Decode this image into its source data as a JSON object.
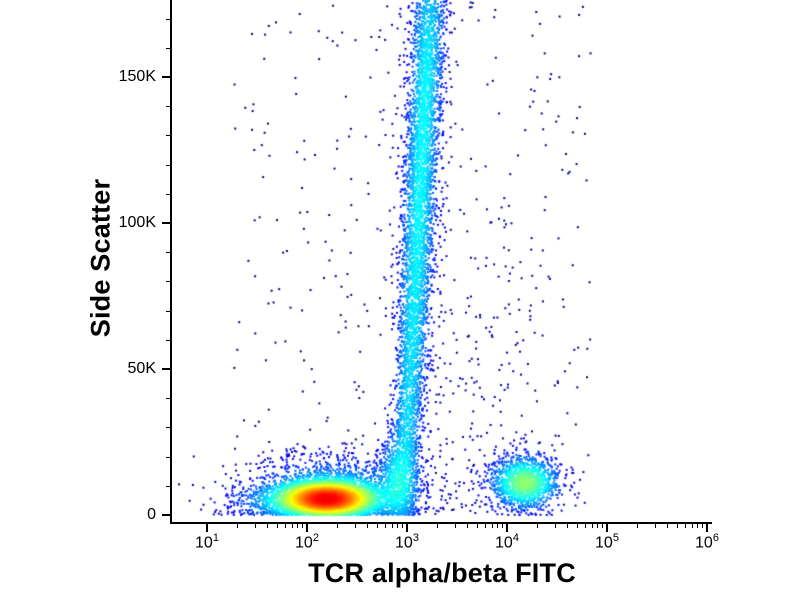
{
  "chart_data": {
    "type": "scatter",
    "subtype": "flow-cytometry-density-dot-plot",
    "title": "",
    "xlabel": "TCR alpha/beta FITC",
    "ylabel": "Side Scatter",
    "x_scale": "log10",
    "x_range": [
      10,
      1000000
    ],
    "y_scale": "linear",
    "y_range": [
      0,
      175000
    ],
    "grid": "off",
    "legend": "none",
    "colormap": "jet-density (blue = sparse, red = dense)",
    "x_axis": {
      "ticks": [
        {
          "log": 1,
          "label": "10",
          "sup": "1"
        },
        {
          "log": 2,
          "label": "10",
          "sup": "2"
        },
        {
          "log": 3,
          "label": "10",
          "sup": "3"
        },
        {
          "log": 4,
          "label": "10",
          "sup": "4"
        },
        {
          "log": 5,
          "label": "10",
          "sup": "5"
        },
        {
          "log": 6,
          "label": "10",
          "sup": "6"
        }
      ],
      "minor_ticks": "log sub-decades 2-9"
    },
    "y_axis": {
      "ticks": [
        {
          "k": 0,
          "label": "0"
        },
        {
          "k": 50,
          "label": "50K"
        },
        {
          "k": 100,
          "label": "100K"
        },
        {
          "k": 150,
          "label": "150K"
        }
      ],
      "minor_step_k": 10
    },
    "populations": [
      {
        "name": "tcr-negative-main",
        "n": 5000,
        "cx": 2.2,
        "sx": 0.26,
        "cy_k": 5.5,
        "sy_k": 3.2
      },
      {
        "name": "tcr-negative-halo",
        "n": 1500,
        "cx": 2.25,
        "sx": 0.42,
        "cy_k": 8,
        "sy_k": 6.5
      },
      {
        "name": "left-tail-debris",
        "n": 350,
        "cx": 1.75,
        "sx": 0.35,
        "cy_k": 4.5,
        "sy_k": 3.5
      },
      {
        "name": "plume-junction",
        "n": 850,
        "cx": 2.92,
        "sx": 0.1,
        "cy_k": 12,
        "sy_k": 9
      },
      {
        "name": "granulocyte-plume-0",
        "n": 520,
        "cx": 3.0,
        "sx": 0.07,
        "cy_k": 33,
        "sy_k": 12
      },
      {
        "name": "granulocyte-plume-1",
        "n": 620,
        "cx": 3.05,
        "sx": 0.075,
        "cy_k": 58,
        "sy_k": 14
      },
      {
        "name": "granulocyte-plume-2",
        "n": 780,
        "cx": 3.09,
        "sx": 0.08,
        "cy_k": 84,
        "sy_k": 16
      },
      {
        "name": "granulocyte-plume-3",
        "n": 800,
        "cx": 3.13,
        "sx": 0.082,
        "cy_k": 110,
        "sy_k": 16
      },
      {
        "name": "granulocyte-plume-4",
        "n": 760,
        "cx": 3.17,
        "sx": 0.08,
        "cy_k": 135,
        "sy_k": 15
      },
      {
        "name": "granulocyte-plume-5",
        "n": 640,
        "cx": 3.21,
        "sx": 0.085,
        "cy_k": 157,
        "sy_k": 13
      },
      {
        "name": "granulocyte-plume-6",
        "n": 380,
        "cx": 3.24,
        "sx": 0.09,
        "cy_k": 176,
        "sy_k": 11
      },
      {
        "name": "plume-halo",
        "n": 480,
        "cx": 3.1,
        "sx": 0.16,
        "cy_k": 95,
        "sy_k": 58
      },
      {
        "name": "tcr-positive",
        "n": 1250,
        "cx": 4.18,
        "sx": 0.16,
        "cy_k": 11,
        "sy_k": 4.2
      },
      {
        "name": "tcr-positive-halo",
        "n": 260,
        "cx": 4.15,
        "sx": 0.26,
        "cy_k": 12,
        "sy_k": 7
      },
      {
        "name": "mid-scatter",
        "n": 130,
        "cx": 3.85,
        "sx": 0.35,
        "cy_k": 45,
        "sy_k": 40
      },
      {
        "name": "background",
        "type": "uniform",
        "n": 330,
        "x_log_range": [
          1.25,
          4.85
        ],
        "y_k_range": [
          0,
          176
        ]
      }
    ]
  }
}
